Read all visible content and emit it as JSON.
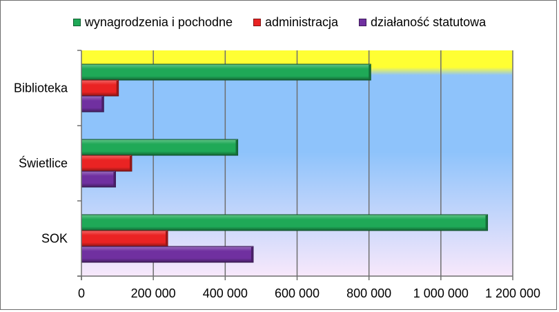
{
  "chart_data": {
    "type": "bar",
    "orientation": "horizontal",
    "categories": [
      "Biblioteka",
      "Świetlice",
      "SOK"
    ],
    "series": [
      {
        "name": "wynagrodzenia i pochodne",
        "color": "#1fa957",
        "values": [
          805000,
          435000,
          1130000
        ]
      },
      {
        "name": "administracja",
        "color": "#ea2323",
        "values": [
          103000,
          140000,
          240000
        ]
      },
      {
        "name": "działaność statutowa",
        "color": "#7030a0",
        "values": [
          62000,
          95000,
          478000
        ]
      }
    ],
    "xlim": [
      0,
      1200000
    ],
    "ticks": [
      0,
      200000,
      400000,
      600000,
      800000,
      1000000,
      1200000
    ],
    "tick_labels": [
      "0",
      "200 000",
      "400 000",
      "600 000",
      "800 000",
      "1 000 000",
      "1 200 000"
    ],
    "grid": true,
    "legend_position": "top",
    "plot_background": [
      "#ffff33",
      "#8ec3fb",
      "#f8e8fb"
    ]
  },
  "legend": {
    "labels": [
      "wynagrodzenia i pochodne",
      "administracja",
      "działaność statutowa"
    ]
  }
}
